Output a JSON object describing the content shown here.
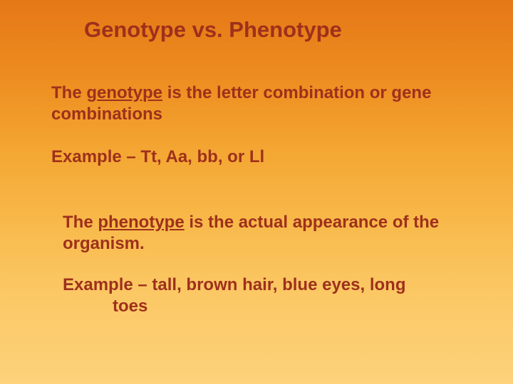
{
  "slide": {
    "background_gradient": [
      "#e67817",
      "#ec8a1e",
      "#f4a733",
      "#f8b94a",
      "#fbc763",
      "#fdd27b"
    ],
    "text_color": "#9e301c",
    "font_family": "Comic Sans MS",
    "title": "Genotype vs. Phenotype",
    "title_fontsize": 31,
    "body_fontsize": 24,
    "genotype_def_pre": "The ",
    "genotype_term": "genotype",
    "genotype_def_post": " is the letter combination or gene combinations",
    "genotype_example": "Example – Tt, Aa, bb, or Ll",
    "phenotype_def_pre": "The ",
    "phenotype_term": "phenotype",
    "phenotype_def_post": " is the actual appearance of the organism.",
    "phenotype_example_line1": "Example – tall, brown hair, blue eyes, long",
    "phenotype_example_line2": "toes"
  }
}
